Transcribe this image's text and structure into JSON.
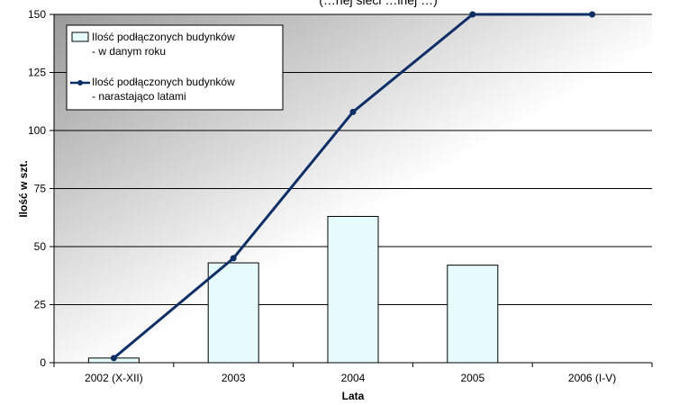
{
  "chart_data": {
    "type": "bar",
    "title_fragment": "(…nej sieci …lnej …)",
    "xlabel": "Lata",
    "ylabel": "Ilość w szt.",
    "categories": [
      "2002 (X-XII)",
      "2003",
      "2004",
      "2005",
      "2006 (I-V)"
    ],
    "yticks": [
      "0",
      "25",
      "50",
      "75",
      "100",
      "125",
      "150"
    ],
    "ylim": [
      0,
      150
    ],
    "grid": true,
    "legend_position": "top-left",
    "series": [
      {
        "name_line1": "Ilość podłączonych budynków",
        "name_line2": "- w danym roku",
        "kind": "bar",
        "values": [
          2,
          43,
          63,
          42,
          0
        ],
        "fill": "#e6fbfb",
        "stroke": "#000000"
      },
      {
        "name_line1": "Ilość podłączonych budynków",
        "name_line2": "- narastająco latami",
        "kind": "line",
        "values": [
          2,
          45,
          108,
          150,
          150
        ],
        "color": "#0e2f66"
      }
    ]
  }
}
